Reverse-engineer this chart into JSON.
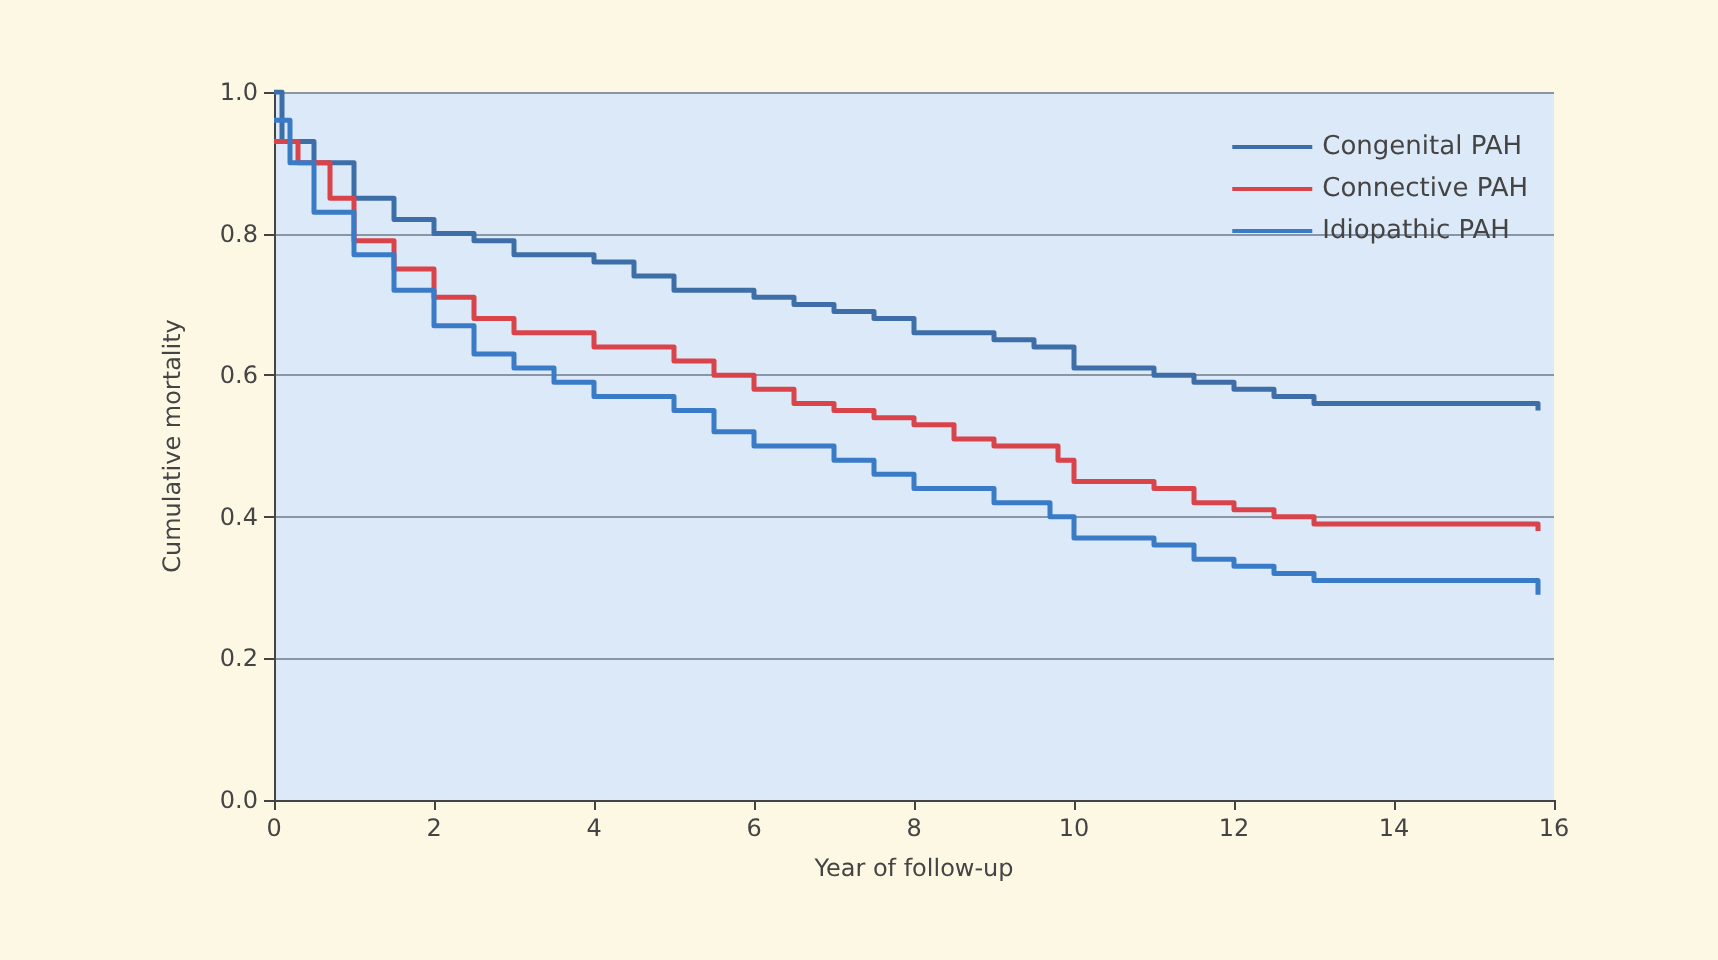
{
  "chart_data": {
    "type": "step",
    "xlabel": "Year of follow-up",
    "ylabel": "Cumulative mortality",
    "xlim": [
      0,
      16
    ],
    "xticks": [
      0,
      2,
      4,
      6,
      8,
      10,
      12,
      14,
      16
    ],
    "ylim": [
      0,
      1
    ],
    "yticks": [
      {
        "value": 0,
        "label": "0.0"
      },
      {
        "value": 0.2,
        "label": "0.2"
      },
      {
        "value": 0.4,
        "label": "0.4"
      },
      {
        "value": 0.6,
        "label": "0.6"
      },
      {
        "value": 0.8,
        "label": "0.8"
      },
      {
        "value": 1,
        "label": "1.0"
      }
    ],
    "grid": "y",
    "legend": "top right",
    "line_style": "solid",
    "marker": "none",
    "series": [
      {
        "name": "Congenital PAH",
        "color": "#3d6ea8",
        "x": [
          0,
          0.1,
          0.5,
          1,
          1.5,
          2,
          2.5,
          3,
          4,
          4.5,
          5,
          6,
          6.5,
          7,
          7.5,
          8,
          9,
          9.5,
          10,
          11,
          11.5,
          12,
          12.5,
          13,
          15.5,
          15.8
        ],
        "values": [
          1.0,
          0.93,
          0.9,
          0.85,
          0.82,
          0.8,
          0.79,
          0.77,
          0.76,
          0.74,
          0.72,
          0.71,
          0.7,
          0.69,
          0.68,
          0.66,
          0.65,
          0.64,
          0.61,
          0.6,
          0.59,
          0.58,
          0.57,
          0.56,
          0.56,
          0.55
        ]
      },
      {
        "name": "Connective PAH",
        "color": "#d9434a",
        "x": [
          0,
          0.3,
          0.7,
          1,
          1.5,
          2,
          2.5,
          3,
          4,
          5,
          5.5,
          6,
          6.5,
          7,
          7.5,
          8,
          8.5,
          9,
          9.8,
          10,
          11,
          11.5,
          12,
          12.5,
          13,
          15.7,
          15.8
        ],
        "values": [
          0.93,
          0.9,
          0.85,
          0.79,
          0.75,
          0.71,
          0.68,
          0.66,
          0.64,
          0.62,
          0.6,
          0.58,
          0.56,
          0.55,
          0.54,
          0.53,
          0.51,
          0.5,
          0.48,
          0.45,
          0.44,
          0.42,
          0.41,
          0.4,
          0.39,
          0.39,
          0.38
        ]
      },
      {
        "name": "Idiopathic PAH",
        "color": "#3a7bc8",
        "x": [
          0,
          0.2,
          0.5,
          1,
          1.5,
          2,
          2.5,
          3,
          3.5,
          4,
          5,
          5.5,
          6,
          7,
          7.5,
          8,
          9,
          9.7,
          10,
          11,
          11.5,
          12,
          12.5,
          13,
          15.7,
          15.8
        ],
        "values": [
          0.96,
          0.9,
          0.83,
          0.77,
          0.72,
          0.67,
          0.63,
          0.61,
          0.59,
          0.57,
          0.55,
          0.52,
          0.5,
          0.48,
          0.46,
          0.44,
          0.42,
          0.4,
          0.37,
          0.36,
          0.34,
          0.33,
          0.32,
          0.31,
          0.31,
          0.29
        ]
      }
    ]
  }
}
